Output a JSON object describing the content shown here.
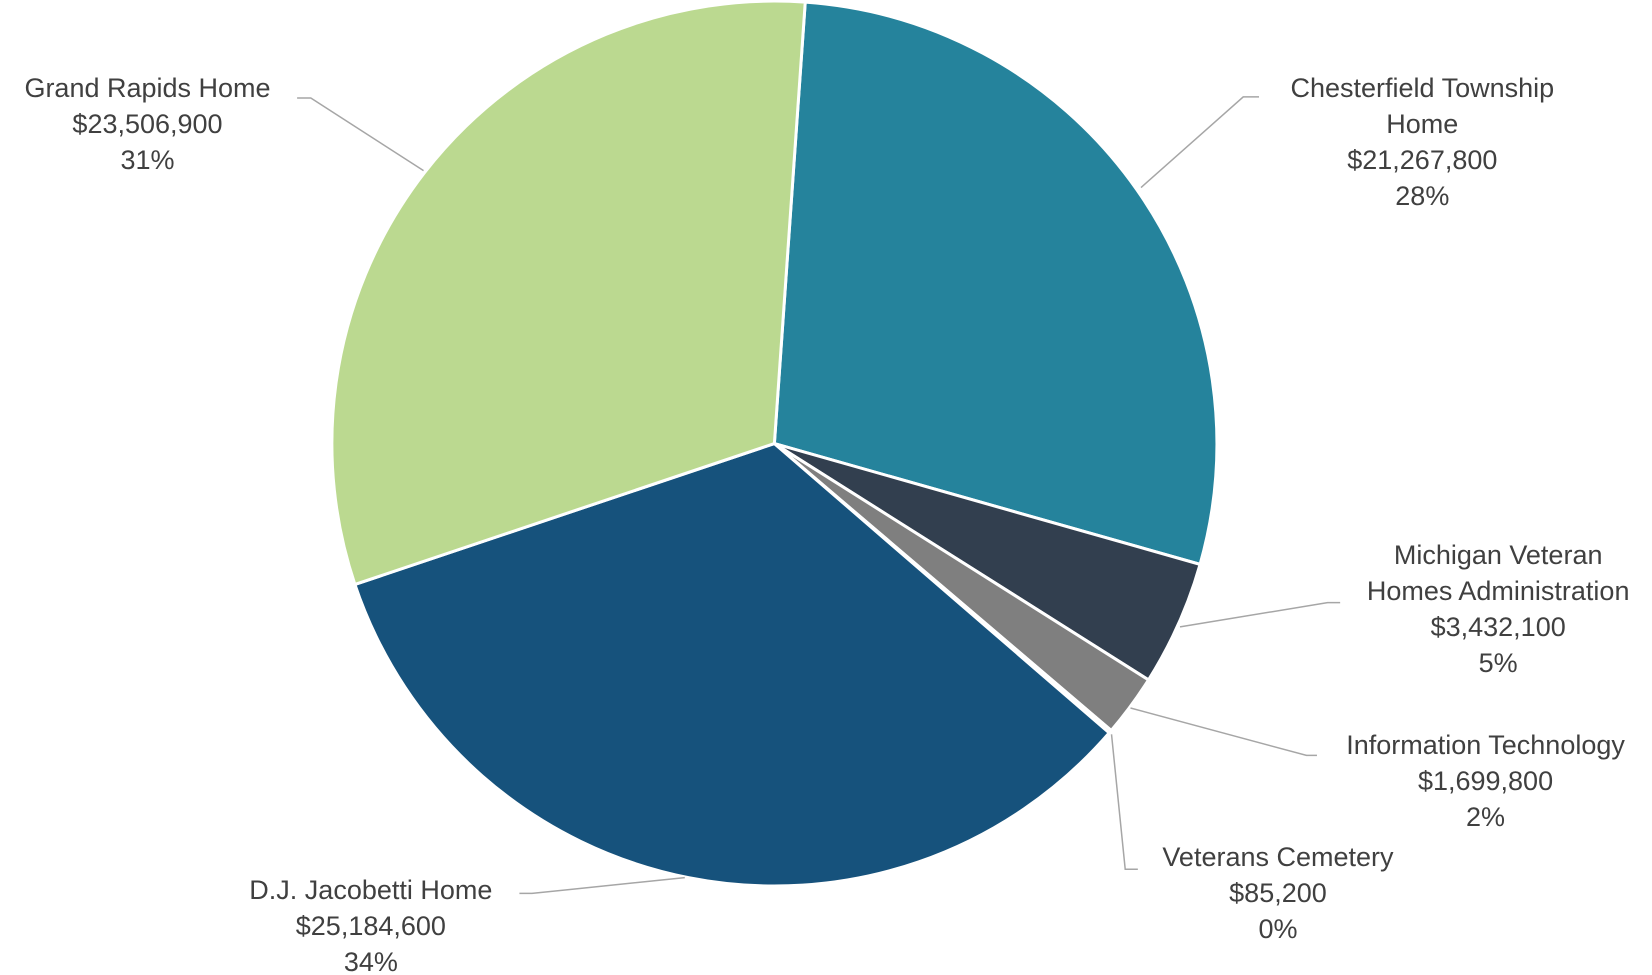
{
  "chart_data": {
    "type": "pie",
    "categories": [
      "Chesterfield Township Home",
      "Michigan Veteran Homes Administration",
      "Information Technology",
      "Veterans Cemetery",
      "D.J. Jacobetti Home",
      "Grand Rapids Home"
    ],
    "values": [
      21267800,
      3432100,
      1699800,
      85200,
      25184600,
      23506900
    ],
    "value_labels": [
      "$21,267,800",
      "$3,432,100",
      "$1,699,800",
      "$85,200",
      "$25,184,600",
      "$23,506,900"
    ],
    "percent_labels": [
      "28%",
      "5%",
      "2%",
      "0%",
      "34%",
      "31%"
    ],
    "colors": [
      "#25839c",
      "#323f4f",
      "#7f7f7f",
      "#d0d0d0",
      "#16527c",
      "#bbd990"
    ]
  }
}
